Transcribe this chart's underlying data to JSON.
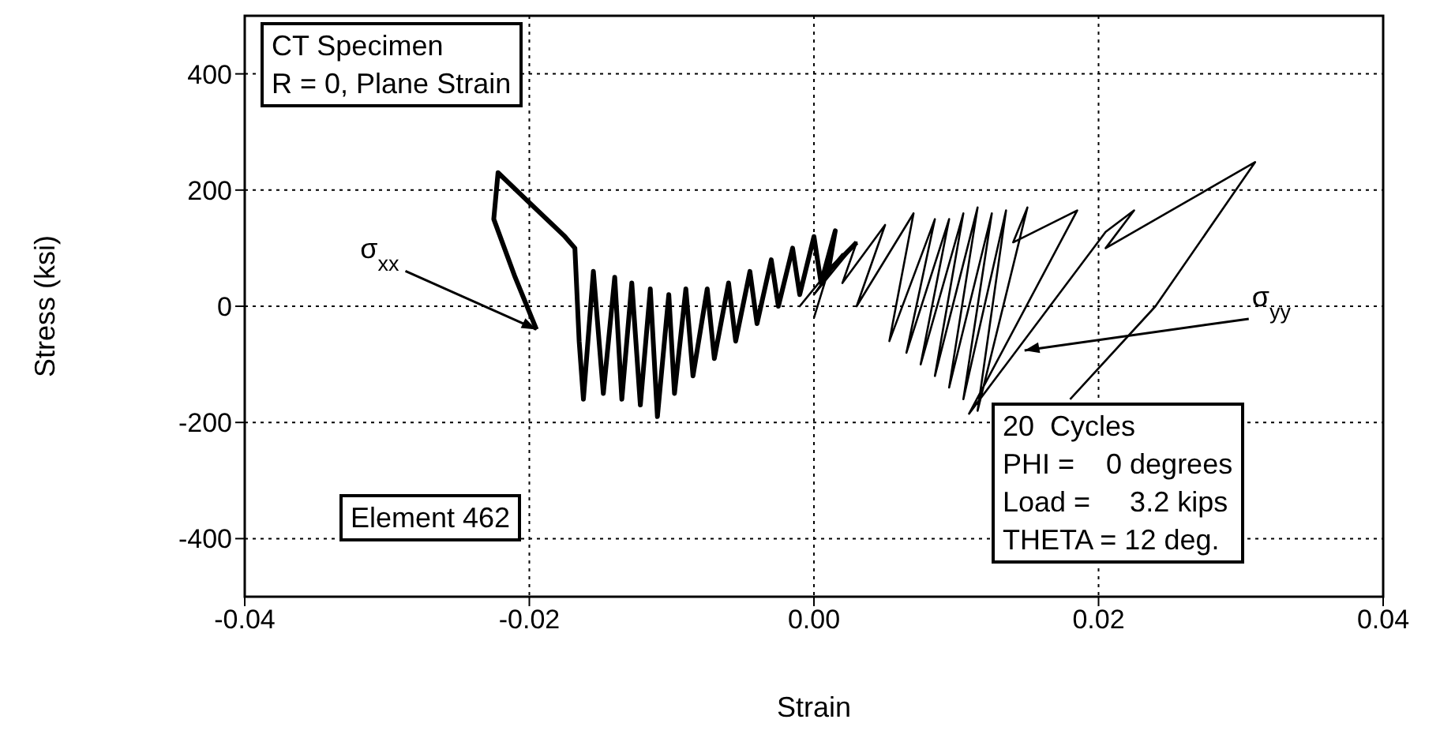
{
  "chart_data": {
    "type": "line",
    "xlabel": "Strain",
    "ylabel": "Stress  (ksi)",
    "xlim": [
      -0.04,
      0.04
    ],
    "xticks": [
      -0.04,
      -0.02,
      {
        "value": 0,
        "label": "0.00"
      },
      0.02,
      0.04
    ],
    "ylim": [
      -500,
      500
    ],
    "yticks": [
      -400,
      -200,
      0,
      200,
      400
    ],
    "grid": true,
    "legend": false,
    "marker": "none",
    "series": [
      {
        "color": "#000000",
        "x": [
          -0.0195,
          -0.021,
          -0.0225,
          -0.0222,
          -0.0205,
          -0.0175,
          -0.0168,
          -0.0165,
          -0.0162,
          -0.0155,
          -0.0148,
          -0.014,
          -0.0135,
          -0.0128,
          -0.0122,
          -0.0115,
          -0.011,
          -0.0102,
          -0.0098,
          -0.009,
          -0.0085,
          -0.0075,
          -0.007,
          -0.006,
          -0.0055,
          -0.0045,
          -0.004,
          -0.003,
          -0.0025,
          -0.0015,
          -0.001,
          0.0,
          0.0005,
          0.0015,
          0.001,
          0.003
        ],
        "values": [
          -40,
          50,
          150,
          230,
          190,
          120,
          100,
          -60,
          -160,
          60,
          -150,
          50,
          -160,
          40,
          -170,
          30,
          -190,
          20,
          -150,
          30,
          -120,
          30,
          -90,
          40,
          -60,
          60,
          -30,
          80,
          0,
          100,
          20,
          120,
          40,
          130,
          60,
          110
        ]
      },
      {
        "color": "#000000",
        "x": [
          0.0,
          0.001,
          -0.001,
          0.002,
          0.0,
          0.003,
          0.002,
          0.005,
          0.003,
          0.007,
          0.0053,
          0.0085,
          0.0065,
          0.0095,
          0.0075,
          0.0105,
          0.0085,
          0.0115,
          0.0095,
          0.0125,
          0.0105,
          0.0135,
          0.0115,
          0.015,
          0.014,
          0.0185,
          0.0109,
          0.0205,
          0.0225,
          0.0205,
          0.031,
          0.024,
          0.018
        ],
        "values": [
          -20,
          60,
          0,
          90,
          20,
          110,
          40,
          140,
          0,
          160,
          -60,
          150,
          -80,
          150,
          -100,
          160,
          -120,
          170,
          -140,
          160,
          -160,
          165,
          -180,
          170,
          110,
          165,
          -185,
          128,
          165,
          100,
          248,
          0,
          -160
        ]
      }
    ],
    "annotations": [
      {
        "text": "σ$_{xx}$",
        "x": -0.0195,
        "y": -40
      },
      {
        "text": "σ$_{yy}$",
        "x": 0.0148,
        "y": -76
      },
      "CT Specimen\nR = 0, Plane Strain",
      "Element 462",
      "20  Cycles\nPHI =    0 degrees\nLoad =     3.2 kips\nTHETA = 12 deg."
    ]
  }
}
